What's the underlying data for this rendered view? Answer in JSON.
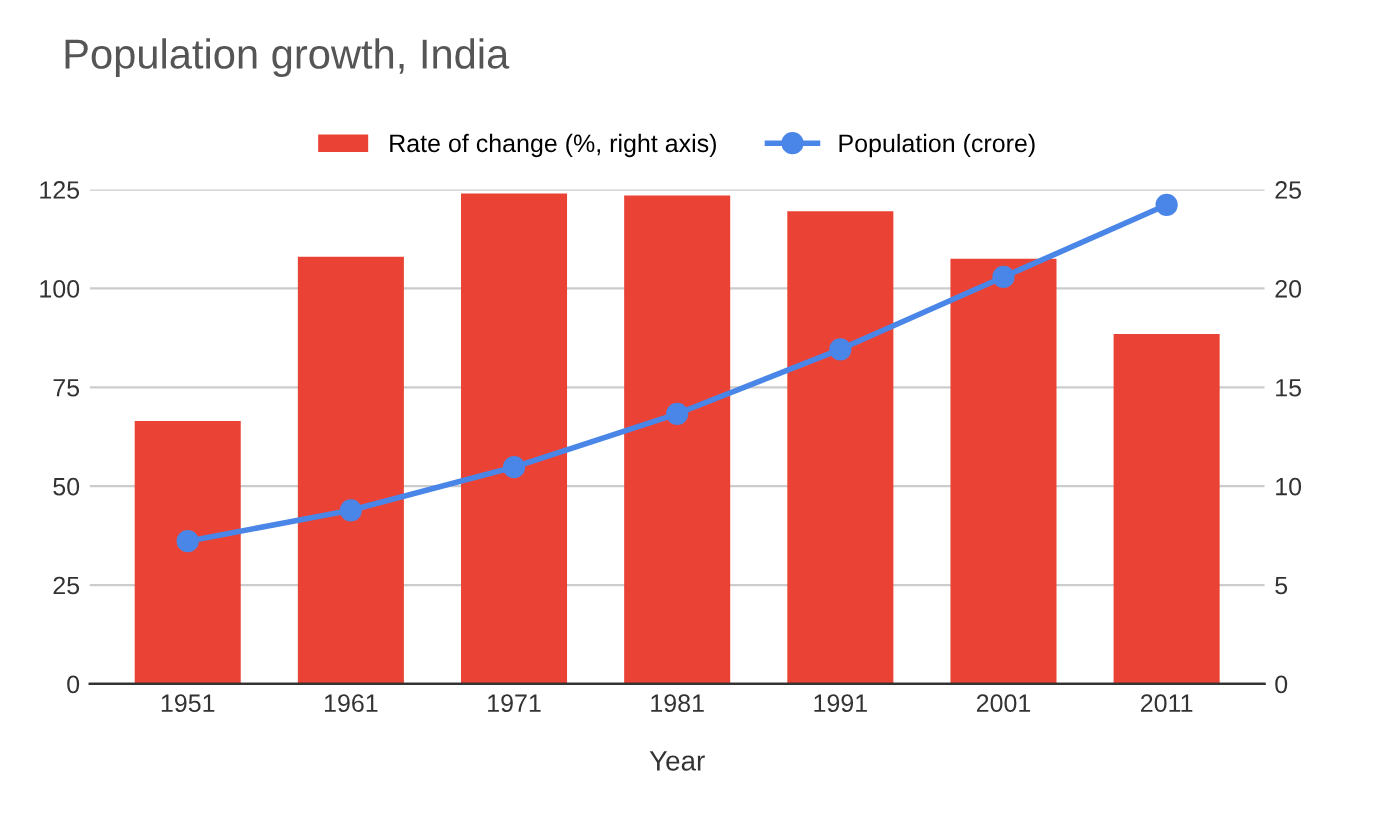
{
  "chart_data": {
    "type": "bar",
    "title": "Population growth, India",
    "xlabel": "Year",
    "categories": [
      "1951",
      "1961",
      "1971",
      "1981",
      "1991",
      "2001",
      "2011"
    ],
    "series": [
      {
        "name": "Rate of change (%, right axis)",
        "axis": "y2",
        "color": "#ea4335",
        "values": [
          13.3,
          21.6,
          24.8,
          24.7,
          23.9,
          21.5,
          17.7
        ]
      },
      {
        "name": "Population (crore)",
        "type": "line",
        "color": "#4a86e8",
        "values": [
          36.1,
          43.9,
          54.8,
          68.3,
          84.6,
          102.9,
          121.1
        ]
      }
    ],
    "ylim": [
      0,
      125
    ],
    "yticks": [
      0,
      25,
      50,
      75,
      100,
      125
    ],
    "y2lim": [
      0,
      25
    ],
    "y2ticks": [
      0,
      5,
      10,
      15,
      20,
      25
    ],
    "grid": "y",
    "legend": "top",
    "marker": "circle"
  }
}
